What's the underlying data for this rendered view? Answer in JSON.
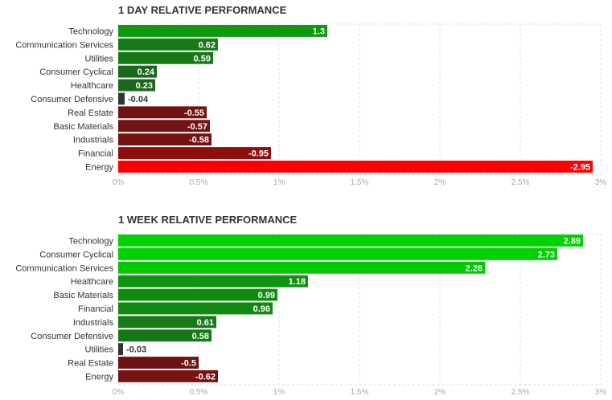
{
  "chart_data": [
    {
      "type": "bar",
      "orientation": "horizontal",
      "title": "1 DAY RELATIVE PERFORMANCE",
      "categories": [
        "Technology",
        "Communication Services",
        "Utilities",
        "Consumer Cyclical",
        "Healthcare",
        "Consumer Defensive",
        "Real Estate",
        "Basic Materials",
        "Industrials",
        "Financial",
        "Energy"
      ],
      "values": [
        1.3,
        0.62,
        0.59,
        0.24,
        0.23,
        -0.04,
        -0.55,
        -0.57,
        -0.58,
        -0.95,
        -2.95
      ],
      "value_labels": [
        "1.3",
        "0.62",
        "0.59",
        "0.24",
        "0.23",
        "-0.04",
        "-0.55",
        "-0.57",
        "-0.58",
        "-0.95",
        "-2.95"
      ],
      "xlim": [
        0,
        3
      ],
      "xticks": [
        "0%",
        "0.5%",
        "1%",
        "1.5%",
        "2%",
        "2.5%",
        "3%"
      ],
      "bar_length": "absolute value",
      "grid": true,
      "colors": {
        "positive_strong": "#00d100",
        "positive_weak": "#1e5c1e",
        "negative_weak": "#4a1818",
        "negative_strong": "#ff0000",
        "neutral": "#333333"
      }
    },
    {
      "type": "bar",
      "orientation": "horizontal",
      "title": "1 WEEK RELATIVE PERFORMANCE",
      "categories": [
        "Technology",
        "Consumer Cyclical",
        "Communication Services",
        "Healthcare",
        "Basic Materials",
        "Financial",
        "Industrials",
        "Consumer Defensive",
        "Utilities",
        "Real Estate",
        "Energy"
      ],
      "values": [
        2.89,
        2.73,
        2.28,
        1.18,
        0.99,
        0.96,
        0.61,
        0.58,
        -0.03,
        -0.5,
        -0.62
      ],
      "value_labels": [
        "2.89",
        "2.73",
        "2.28",
        "1.18",
        "0.99",
        "0.96",
        "0.61",
        "0.58",
        "-0.03",
        "-0.5",
        "-0.62"
      ],
      "xlim": [
        0,
        3
      ],
      "xticks": [
        "0%",
        "0.5%",
        "1%",
        "1.5%",
        "2%",
        "2.5%",
        "3%"
      ],
      "bar_length": "absolute value",
      "grid": true,
      "colors": {
        "positive_strong": "#00d100",
        "positive_weak": "#1e5c1e",
        "negative_weak": "#4a1818",
        "negative_strong": "#ff0000",
        "neutral": "#333333"
      }
    }
  ]
}
